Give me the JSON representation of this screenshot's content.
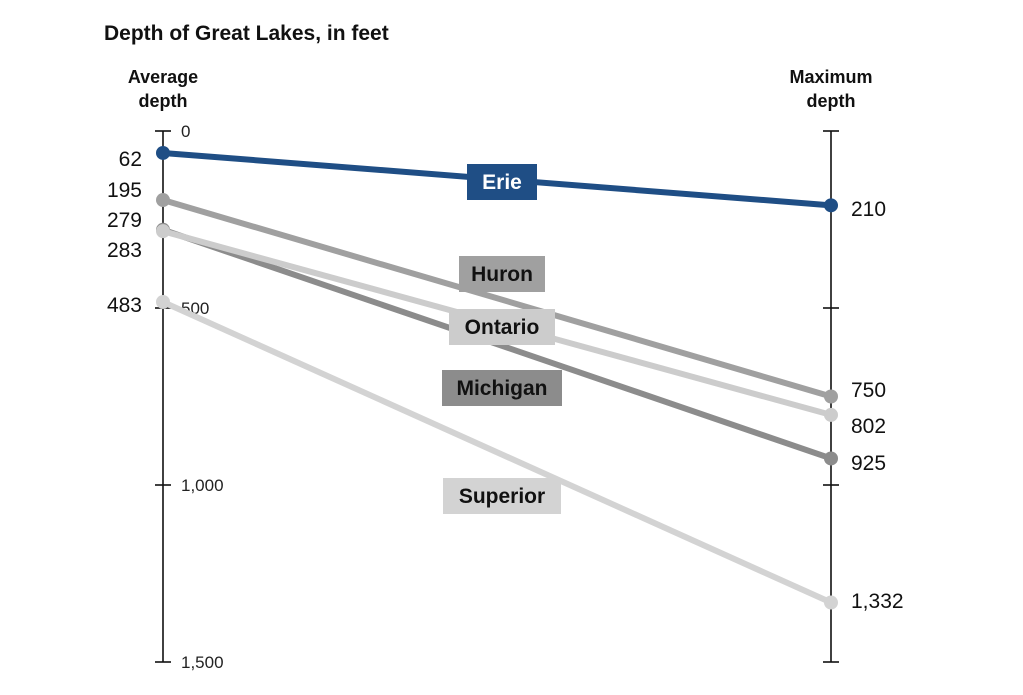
{
  "chart_data": {
    "type": "line",
    "title": "Depth of Great Lakes, in feet",
    "left_axis_title": [
      "Average",
      "depth"
    ],
    "right_axis_title": [
      "Maximum",
      "depth"
    ],
    "yrange": [
      0,
      1500
    ],
    "y_ticks": [
      {
        "value": 0,
        "label": "0"
      },
      {
        "value": 500,
        "label": "500"
      },
      {
        "value": 1000,
        "label": "1,000"
      },
      {
        "value": 1500,
        "label": "1,500"
      }
    ],
    "right_tick_values": [
      0,
      500,
      1000,
      1500
    ],
    "series": [
      {
        "name": "Erie",
        "average": 62,
        "maximum": 210,
        "average_label": "62",
        "maximum_label": "210",
        "color": "#1f4e85",
        "label_text_color": "#ffffff"
      },
      {
        "name": "Huron",
        "average": 195,
        "maximum": 750,
        "average_label": "195",
        "maximum_label": "750",
        "color": "#a0a0a0",
        "label_text_color": "#111111"
      },
      {
        "name": "Michigan",
        "average": 279,
        "maximum": 925,
        "average_label": "279",
        "maximum_label": "925",
        "color": "#8c8c8c",
        "label_text_color": "#111111"
      },
      {
        "name": "Ontario",
        "average": 283,
        "maximum": 802,
        "average_label": "283",
        "maximum_label": "802",
        "color": "#cccccc",
        "label_text_color": "#111111"
      },
      {
        "name": "Superior",
        "average": 483,
        "maximum": 1332,
        "average_label": "483",
        "maximum_label": "1,332",
        "color": "#d3d3d3",
        "label_text_color": "#111111"
      }
    ]
  }
}
